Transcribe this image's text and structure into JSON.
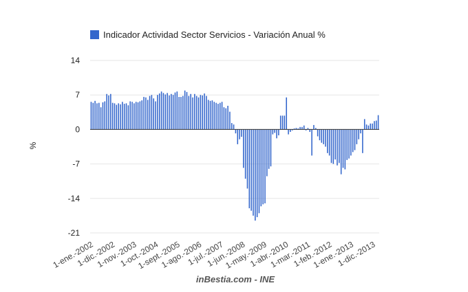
{
  "chart_data": {
    "type": "bar",
    "title": "",
    "legend": {
      "position": "top",
      "entries": [
        "Indicador Actividad Sector Servicios - Variación Anual %"
      ]
    },
    "series": [
      {
        "name": "Indicador Actividad Sector Servicios - Variación Anual %",
        "color": "#3366cc",
        "values": [
          5.6,
          5.4,
          5.8,
          5.3,
          5.4,
          4.5,
          5.5,
          5.7,
          7.2,
          6.9,
          7.2,
          5.4,
          5.3,
          5.0,
          5.3,
          5.1,
          5.6,
          5.2,
          5.3,
          4.9,
          5.7,
          5.6,
          5.3,
          5.6,
          5.5,
          5.7,
          5.9,
          6.6,
          6.5,
          6.0,
          6.8,
          7.0,
          6.3,
          5.7,
          7.0,
          7.3,
          7.7,
          7.4,
          7.1,
          7.4,
          6.9,
          7.2,
          7.0,
          7.5,
          7.7,
          6.6,
          6.6,
          6.8,
          7.9,
          7.6,
          6.8,
          7.2,
          6.5,
          7.2,
          6.8,
          6.5,
          7.0,
          6.9,
          7.3,
          6.8,
          6.0,
          5.8,
          5.9,
          5.6,
          5.4,
          5.2,
          5.4,
          5.6,
          4.5,
          4.3,
          4.8,
          3.6,
          1.3,
          1.0,
          -0.8,
          -3.0,
          -2.0,
          -1.5,
          -7.8,
          -10.0,
          -12.0,
          -16.0,
          -16.5,
          -17.5,
          -18.5,
          -17.8,
          -17.0,
          -15.6,
          -15.2,
          -15.0,
          -9.5,
          -8.0,
          -7.5,
          -1.0,
          -0.7,
          -1.8,
          -1.2,
          2.8,
          2.8,
          2.8,
          6.5,
          -1.0,
          -0.5,
          -0.2,
          0.2,
          0.3,
          0.2,
          0.5,
          0.5,
          0.8,
          -0.2,
          0.3,
          -0.5,
          -5.3,
          0.9,
          0.3,
          -1.4,
          -2.2,
          -2.7,
          -3.0,
          -3.5,
          -4.8,
          -5.3,
          -6.8,
          -7.0,
          -6.1,
          -7.3,
          -6.8,
          -9.1,
          -7.8,
          -8.1,
          -6.2,
          -5.9,
          -5.3,
          -4.6,
          -4.2,
          -3.0,
          -2.0,
          -0.8,
          -4.8,
          2.1,
          1.0,
          0.8,
          1.2,
          1.2,
          1.7,
          1.8,
          2.9
        ]
      }
    ],
    "x_start": "1-ene.-2002",
    "x_tick_labels": [
      "1-ene.-2002",
      "1-dic.-2002",
      "1-nov.-2003",
      "1-oct.-2004",
      "1-sept.-2005",
      "1-ago.-2006",
      "1-jul.-2007",
      "1-jun.-2008",
      "1-may.-2009",
      "1-abr.-2010",
      "1-mar.-2011",
      "1-feb.-2012",
      "1-ene.-2013",
      "1-dic.-2013"
    ],
    "y_ticks": [
      "14",
      "7",
      "0",
      "-7",
      "-14",
      "-21"
    ],
    "ylim": [
      -21,
      14
    ],
    "ylabel": "%",
    "xlabel": "",
    "grid": true
  },
  "footer": {
    "caption": "inBestia.com - INE"
  }
}
